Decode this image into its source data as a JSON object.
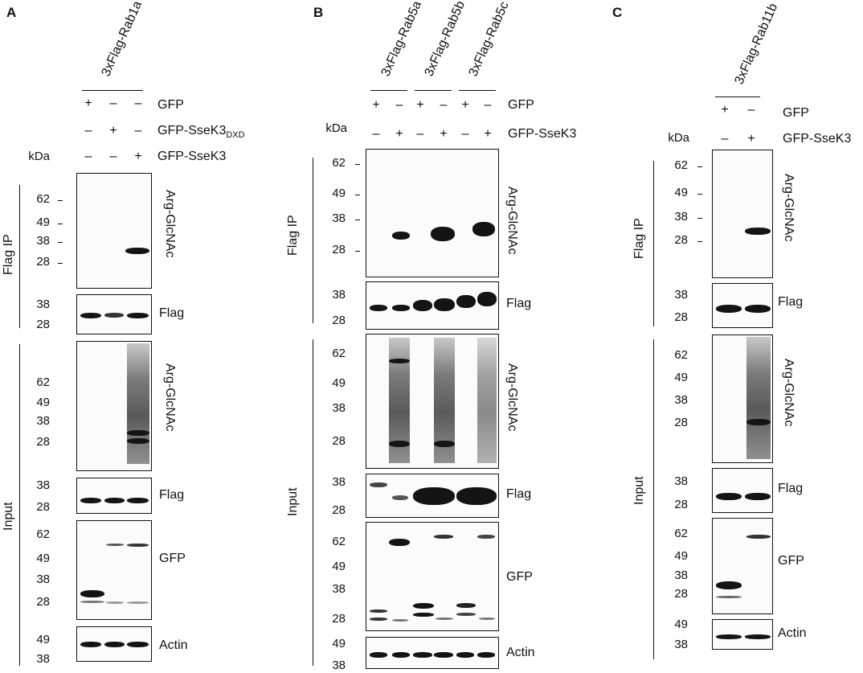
{
  "panels": [
    {
      "letter": "A",
      "samples": [
        "3xFlag-Rab1a"
      ],
      "rows": [
        {
          "label": "GFP",
          "signs": [
            "+",
            "–",
            "–"
          ]
        },
        {
          "label": "GFP-SseK3",
          "sub": "DXD",
          "signs": [
            "–",
            "+",
            "–"
          ]
        },
        {
          "label": "GFP-SseK3",
          "signs": [
            "–",
            "–",
            "+"
          ]
        }
      ],
      "kda_label": "kDa",
      "groups": [
        "Flag IP",
        "Input"
      ],
      "blots": [
        {
          "antibody": "Arg-GlcNAc",
          "markers": [
            "62",
            "49",
            "38",
            "28"
          ]
        },
        {
          "antibody": "Flag",
          "markers": [
            "38",
            "28"
          ]
        },
        {
          "antibody": "Arg-GlcNAc",
          "markers": [
            "62",
            "49",
            "38",
            "28"
          ]
        },
        {
          "antibody": "Flag",
          "markers": [
            "38",
            "28"
          ]
        },
        {
          "antibody": "GFP",
          "markers": [
            "62",
            "49",
            "38",
            "28"
          ]
        },
        {
          "antibody": "Actin",
          "markers": [
            "49",
            "38"
          ]
        }
      ]
    },
    {
      "letter": "B",
      "samples": [
        "3xFlag-Rab5a",
        "3xFlag-Rab5b",
        "3xFlag-Rab5c"
      ],
      "rows": [
        {
          "label": "GFP",
          "signs": [
            "+",
            "–",
            "+",
            "–",
            "+",
            "–"
          ]
        },
        {
          "label": "GFP-SseK3",
          "signs": [
            "–",
            "+",
            "–",
            "+",
            "–",
            "+"
          ]
        }
      ],
      "kda_label": "kDa",
      "groups": [
        "Flag IP",
        "Input"
      ],
      "blots": [
        {
          "antibody": "Arg-GlcNAc",
          "markers": [
            "62",
            "49",
            "38",
            "28"
          ]
        },
        {
          "antibody": "Flag",
          "markers": [
            "38",
            "28"
          ]
        },
        {
          "antibody": "Arg-GlcNAc",
          "markers": [
            "62",
            "49",
            "38",
            "28"
          ]
        },
        {
          "antibody": "Flag",
          "markers": [
            "38",
            "28"
          ]
        },
        {
          "antibody": "GFP",
          "markers": [
            "62",
            "49",
            "38",
            "28"
          ]
        },
        {
          "antibody": "Actin",
          "markers": [
            "49",
            "38"
          ]
        }
      ]
    },
    {
      "letter": "C",
      "samples": [
        "3xFlag-Rab11b"
      ],
      "rows": [
        {
          "label": "GFP",
          "signs": [
            "+",
            "–"
          ]
        },
        {
          "label": "GFP-SseK3",
          "signs": [
            "–",
            "+"
          ]
        }
      ],
      "kda_label": "kDa",
      "groups": [
        "Flag IP",
        "Input"
      ],
      "blots": [
        {
          "antibody": "Arg-GlcNAc",
          "markers": [
            "62",
            "49",
            "38",
            "28"
          ]
        },
        {
          "antibody": "Flag",
          "markers": [
            "38",
            "28"
          ]
        },
        {
          "antibody": "Arg-GlcNAc",
          "markers": [
            "62",
            "49",
            "38",
            "28"
          ]
        },
        {
          "antibody": "Flag",
          "markers": [
            "38",
            "28"
          ]
        },
        {
          "antibody": "GFP",
          "markers": [
            "62",
            "49",
            "38",
            "28"
          ]
        },
        {
          "antibody": "Actin",
          "markers": [
            "49",
            "38"
          ]
        }
      ]
    }
  ]
}
